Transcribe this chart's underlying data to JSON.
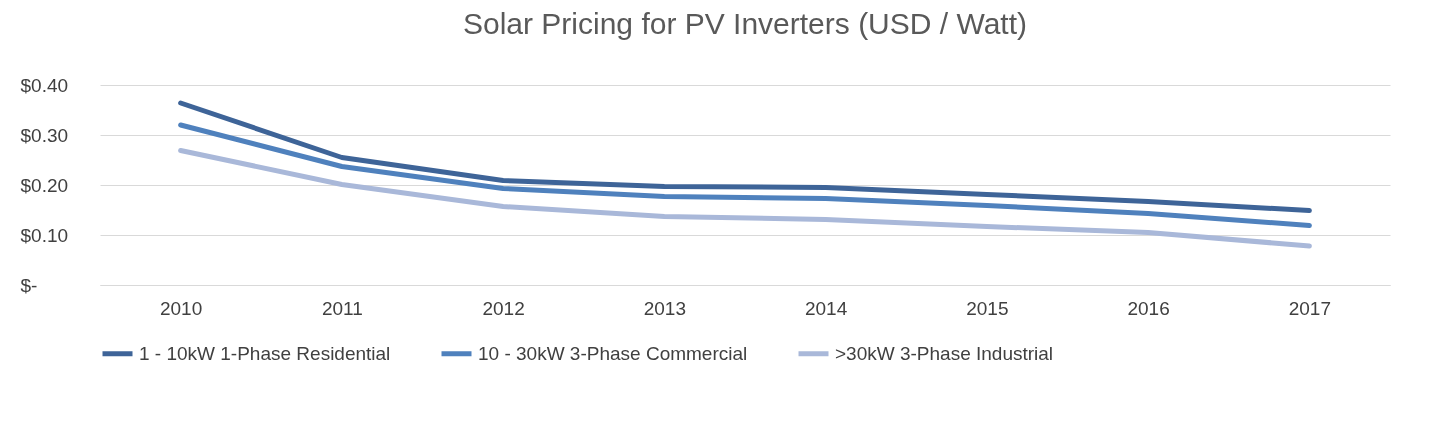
{
  "chart_data": {
    "type": "line",
    "title": "Solar Pricing for PV Inverters (USD / Watt)",
    "categories": [
      "2010",
      "2011",
      "2012",
      "2013",
      "2014",
      "2015",
      "2016",
      "2017"
    ],
    "series": [
      {
        "name": "1 - 10kW 1-Phase Residential",
        "color": "#3e6498",
        "values": [
          0.364,
          0.255,
          0.209,
          0.197,
          0.195,
          0.181,
          0.167,
          0.149
        ]
      },
      {
        "name": "10 - 30kW 3-Phase Commercial",
        "color": "#4f81bd",
        "values": [
          0.32,
          0.237,
          0.193,
          0.177,
          0.173,
          0.159,
          0.143,
          0.119
        ]
      },
      {
        "name": ">30kW 3-Phase Industrial",
        "color": "#a9b8d9",
        "values": [
          0.269,
          0.201,
          0.157,
          0.137,
          0.131,
          0.117,
          0.105,
          0.078
        ]
      }
    ],
    "ylim": [
      0,
      0.4
    ],
    "yticks": [
      {
        "value": 0,
        "label": "$-"
      },
      {
        "value": 0.1,
        "label": "$0.10"
      },
      {
        "value": 0.2,
        "label": "$0.20"
      },
      {
        "value": 0.3,
        "label": "$0.30"
      },
      {
        "value": 0.4,
        "label": "$0.40"
      }
    ],
    "grid": "y",
    "legend": "bottom"
  }
}
